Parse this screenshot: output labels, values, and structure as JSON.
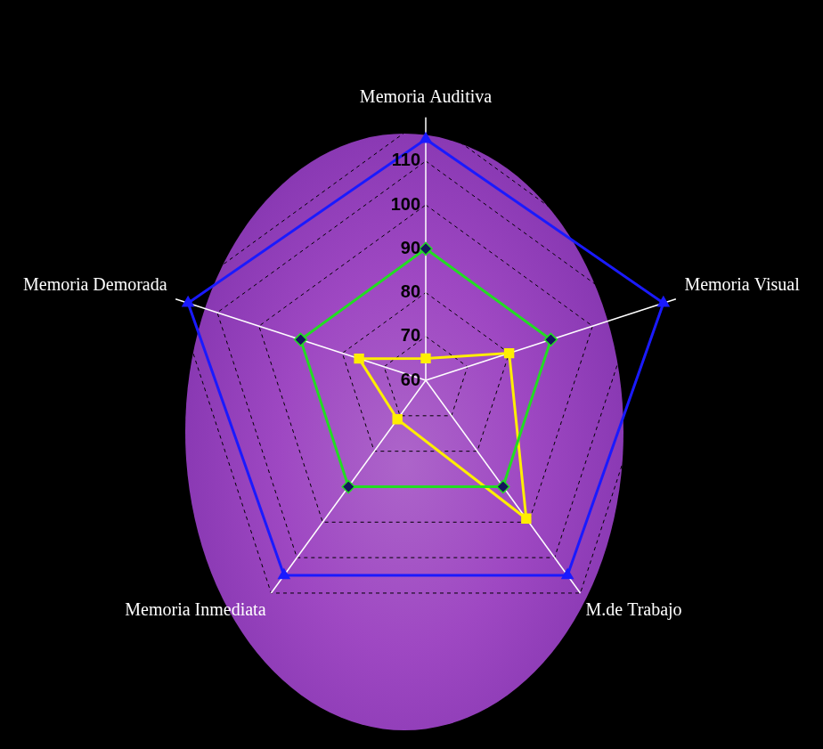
{
  "chart_data": {
    "type": "radar",
    "categories": [
      "Memoria Auditiva",
      "Memoria Visual",
      "M.de Trabajo",
      "Memoria Inmediata",
      "Memoria Demorada"
    ],
    "series": [
      {
        "color": "#1a1aff",
        "marker": "triangle",
        "values": [
          115,
          117,
          115,
          115,
          117
        ]
      },
      {
        "color": "#22dd22",
        "marker": "diamond",
        "values": [
          90,
          90,
          90,
          90,
          90
        ]
      },
      {
        "color": "#ffee00",
        "marker": "square",
        "values": [
          65,
          80,
          99,
          71,
          76
        ]
      }
    ],
    "ylim": [
      60,
      120
    ],
    "yticks": [
      60,
      70,
      80,
      90,
      100,
      110,
      120
    ],
    "grid": true
  }
}
